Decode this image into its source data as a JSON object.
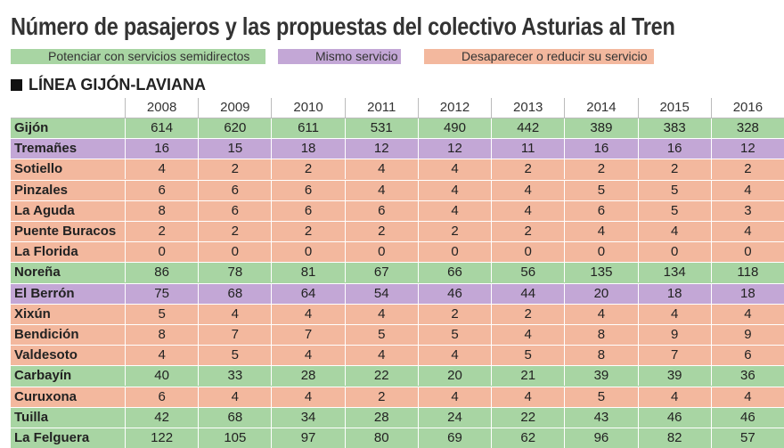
{
  "header": {
    "title": "Número de pasajeros y las propuestas del colectivo Asturias al Tren"
  },
  "legend": [
    {
      "label": "Potenciar con servicios semidirectos",
      "color": "#a8d5a3"
    },
    {
      "label": "Mismo servicio",
      "color": "#c3a7d6"
    },
    {
      "label": "Desaparecer o reducir su servicio",
      "color": "#f3b89e"
    }
  ],
  "section": {
    "title": "LÍNEA GIJÓN-LAVIANA"
  },
  "table": {
    "columns": [
      2008,
      2009,
      2010,
      2011,
      2012,
      2013,
      2014,
      2015,
      2016
    ],
    "rows": [
      {
        "name": "Gijón",
        "group": 0,
        "values": [
          614,
          620,
          611,
          531,
          490,
          442,
          389,
          383,
          328
        ]
      },
      {
        "name": "Tremañes",
        "group": 1,
        "values": [
          16,
          15,
          18,
          12,
          12,
          11,
          16,
          16,
          12
        ]
      },
      {
        "name": "Sotiello",
        "group": 2,
        "values": [
          4,
          2,
          2,
          4,
          4,
          2,
          2,
          2,
          2
        ]
      },
      {
        "name": "Pinzales",
        "group": 2,
        "values": [
          6,
          6,
          6,
          4,
          4,
          4,
          5,
          5,
          4
        ]
      },
      {
        "name": "La Aguda",
        "group": 2,
        "values": [
          8,
          6,
          6,
          6,
          4,
          4,
          6,
          5,
          3
        ]
      },
      {
        "name": "Puente Buracos",
        "group": 2,
        "values": [
          2,
          2,
          2,
          2,
          2,
          2,
          4,
          4,
          4
        ]
      },
      {
        "name": "La Florida",
        "group": 2,
        "values": [
          0,
          0,
          0,
          0,
          0,
          0,
          0,
          0,
          0
        ]
      },
      {
        "name": "Noreña",
        "group": 0,
        "values": [
          86,
          78,
          81,
          67,
          66,
          56,
          135,
          134,
          118
        ]
      },
      {
        "name": "El Berrón",
        "group": 1,
        "values": [
          75,
          68,
          64,
          54,
          46,
          44,
          20,
          18,
          18
        ]
      },
      {
        "name": "Xixún",
        "group": 2,
        "values": [
          5,
          4,
          4,
          4,
          2,
          2,
          4,
          4,
          4
        ]
      },
      {
        "name": "Bendición",
        "group": 2,
        "values": [
          8,
          7,
          7,
          5,
          5,
          4,
          8,
          9,
          9
        ]
      },
      {
        "name": "Valdesoto",
        "group": 2,
        "values": [
          4,
          5,
          4,
          4,
          4,
          5,
          8,
          7,
          6
        ]
      },
      {
        "name": "Carbayín",
        "group": 0,
        "values": [
          40,
          33,
          28,
          22,
          20,
          21,
          39,
          39,
          36
        ]
      },
      {
        "name": "Curuxona",
        "group": 2,
        "values": [
          6,
          4,
          4,
          2,
          4,
          4,
          5,
          4,
          4
        ]
      },
      {
        "name": "Tuilla",
        "group": 0,
        "values": [
          42,
          68,
          34,
          28,
          24,
          22,
          43,
          46,
          46
        ]
      },
      {
        "name": "La Felguera",
        "group": 0,
        "values": [
          122,
          105,
          97,
          80,
          69,
          62,
          96,
          82,
          57
        ]
      }
    ]
  }
}
